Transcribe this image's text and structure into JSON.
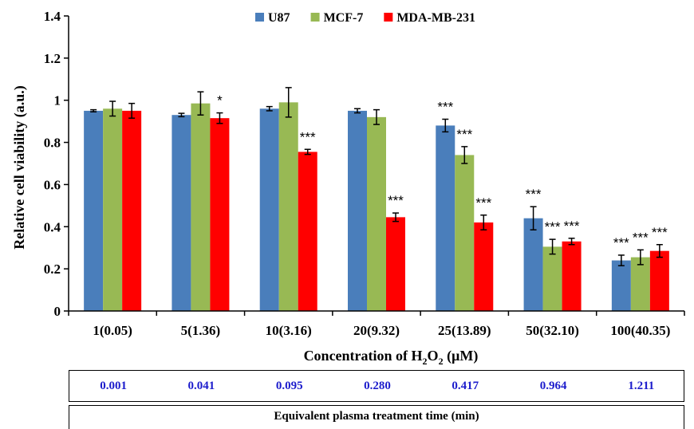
{
  "chart_data": {
    "type": "bar",
    "categories": [
      "1(0.05)",
      "5(1.36)",
      "10(3.16)",
      "20(9.32)",
      "25(13.89)",
      "50(32.10)",
      "100(40.35)"
    ],
    "series": [
      {
        "name": "U87",
        "color": "#4a7ebb",
        "values": [
          0.95,
          0.93,
          0.96,
          0.95,
          0.88,
          0.44,
          0.24
        ],
        "errors": [
          0.005,
          0.008,
          0.01,
          0.01,
          0.03,
          0.055,
          0.025
        ],
        "sig": [
          "",
          "",
          "",
          "",
          "***",
          "***",
          "***"
        ]
      },
      {
        "name": "MCF-7",
        "color": "#98b954",
        "values": [
          0.96,
          0.985,
          0.99,
          0.92,
          0.74,
          0.305,
          0.255
        ],
        "errors": [
          0.035,
          0.055,
          0.07,
          0.035,
          0.04,
          0.035,
          0.035
        ],
        "sig": [
          "",
          "",
          "",
          "",
          "***",
          "***",
          "***"
        ]
      },
      {
        "name": "MDA-MB-231",
        "color": "#ff0000",
        "values": [
          0.95,
          0.915,
          0.755,
          0.445,
          0.42,
          0.33,
          0.285
        ],
        "errors": [
          0.035,
          0.025,
          0.012,
          0.02,
          0.035,
          0.015,
          0.03
        ],
        "sig": [
          "",
          "*",
          "***",
          "***",
          "***",
          "***",
          "***"
        ]
      }
    ],
    "xlabel_main": "Concentration of H",
    "xlabel_sub": "2",
    "xlabel_mid": "O",
    "xlabel_sub2": "2",
    "xlabel_end": " (µM)",
    "ylabel": "Relative cell viability (a.u.)",
    "ylim": [
      0,
      1.4
    ],
    "yticks": [
      "0",
      "0.2",
      "0.4",
      "0.6",
      "0.8",
      "1",
      "1.2",
      "1.4"
    ],
    "legend": "top-center",
    "grid": false
  },
  "table": {
    "times": [
      "0.001",
      "0.041",
      "0.095",
      "0.280",
      "0.417",
      "0.964",
      "1.211"
    ],
    "caption": "Equivalent plasma treatment time (min)"
  }
}
